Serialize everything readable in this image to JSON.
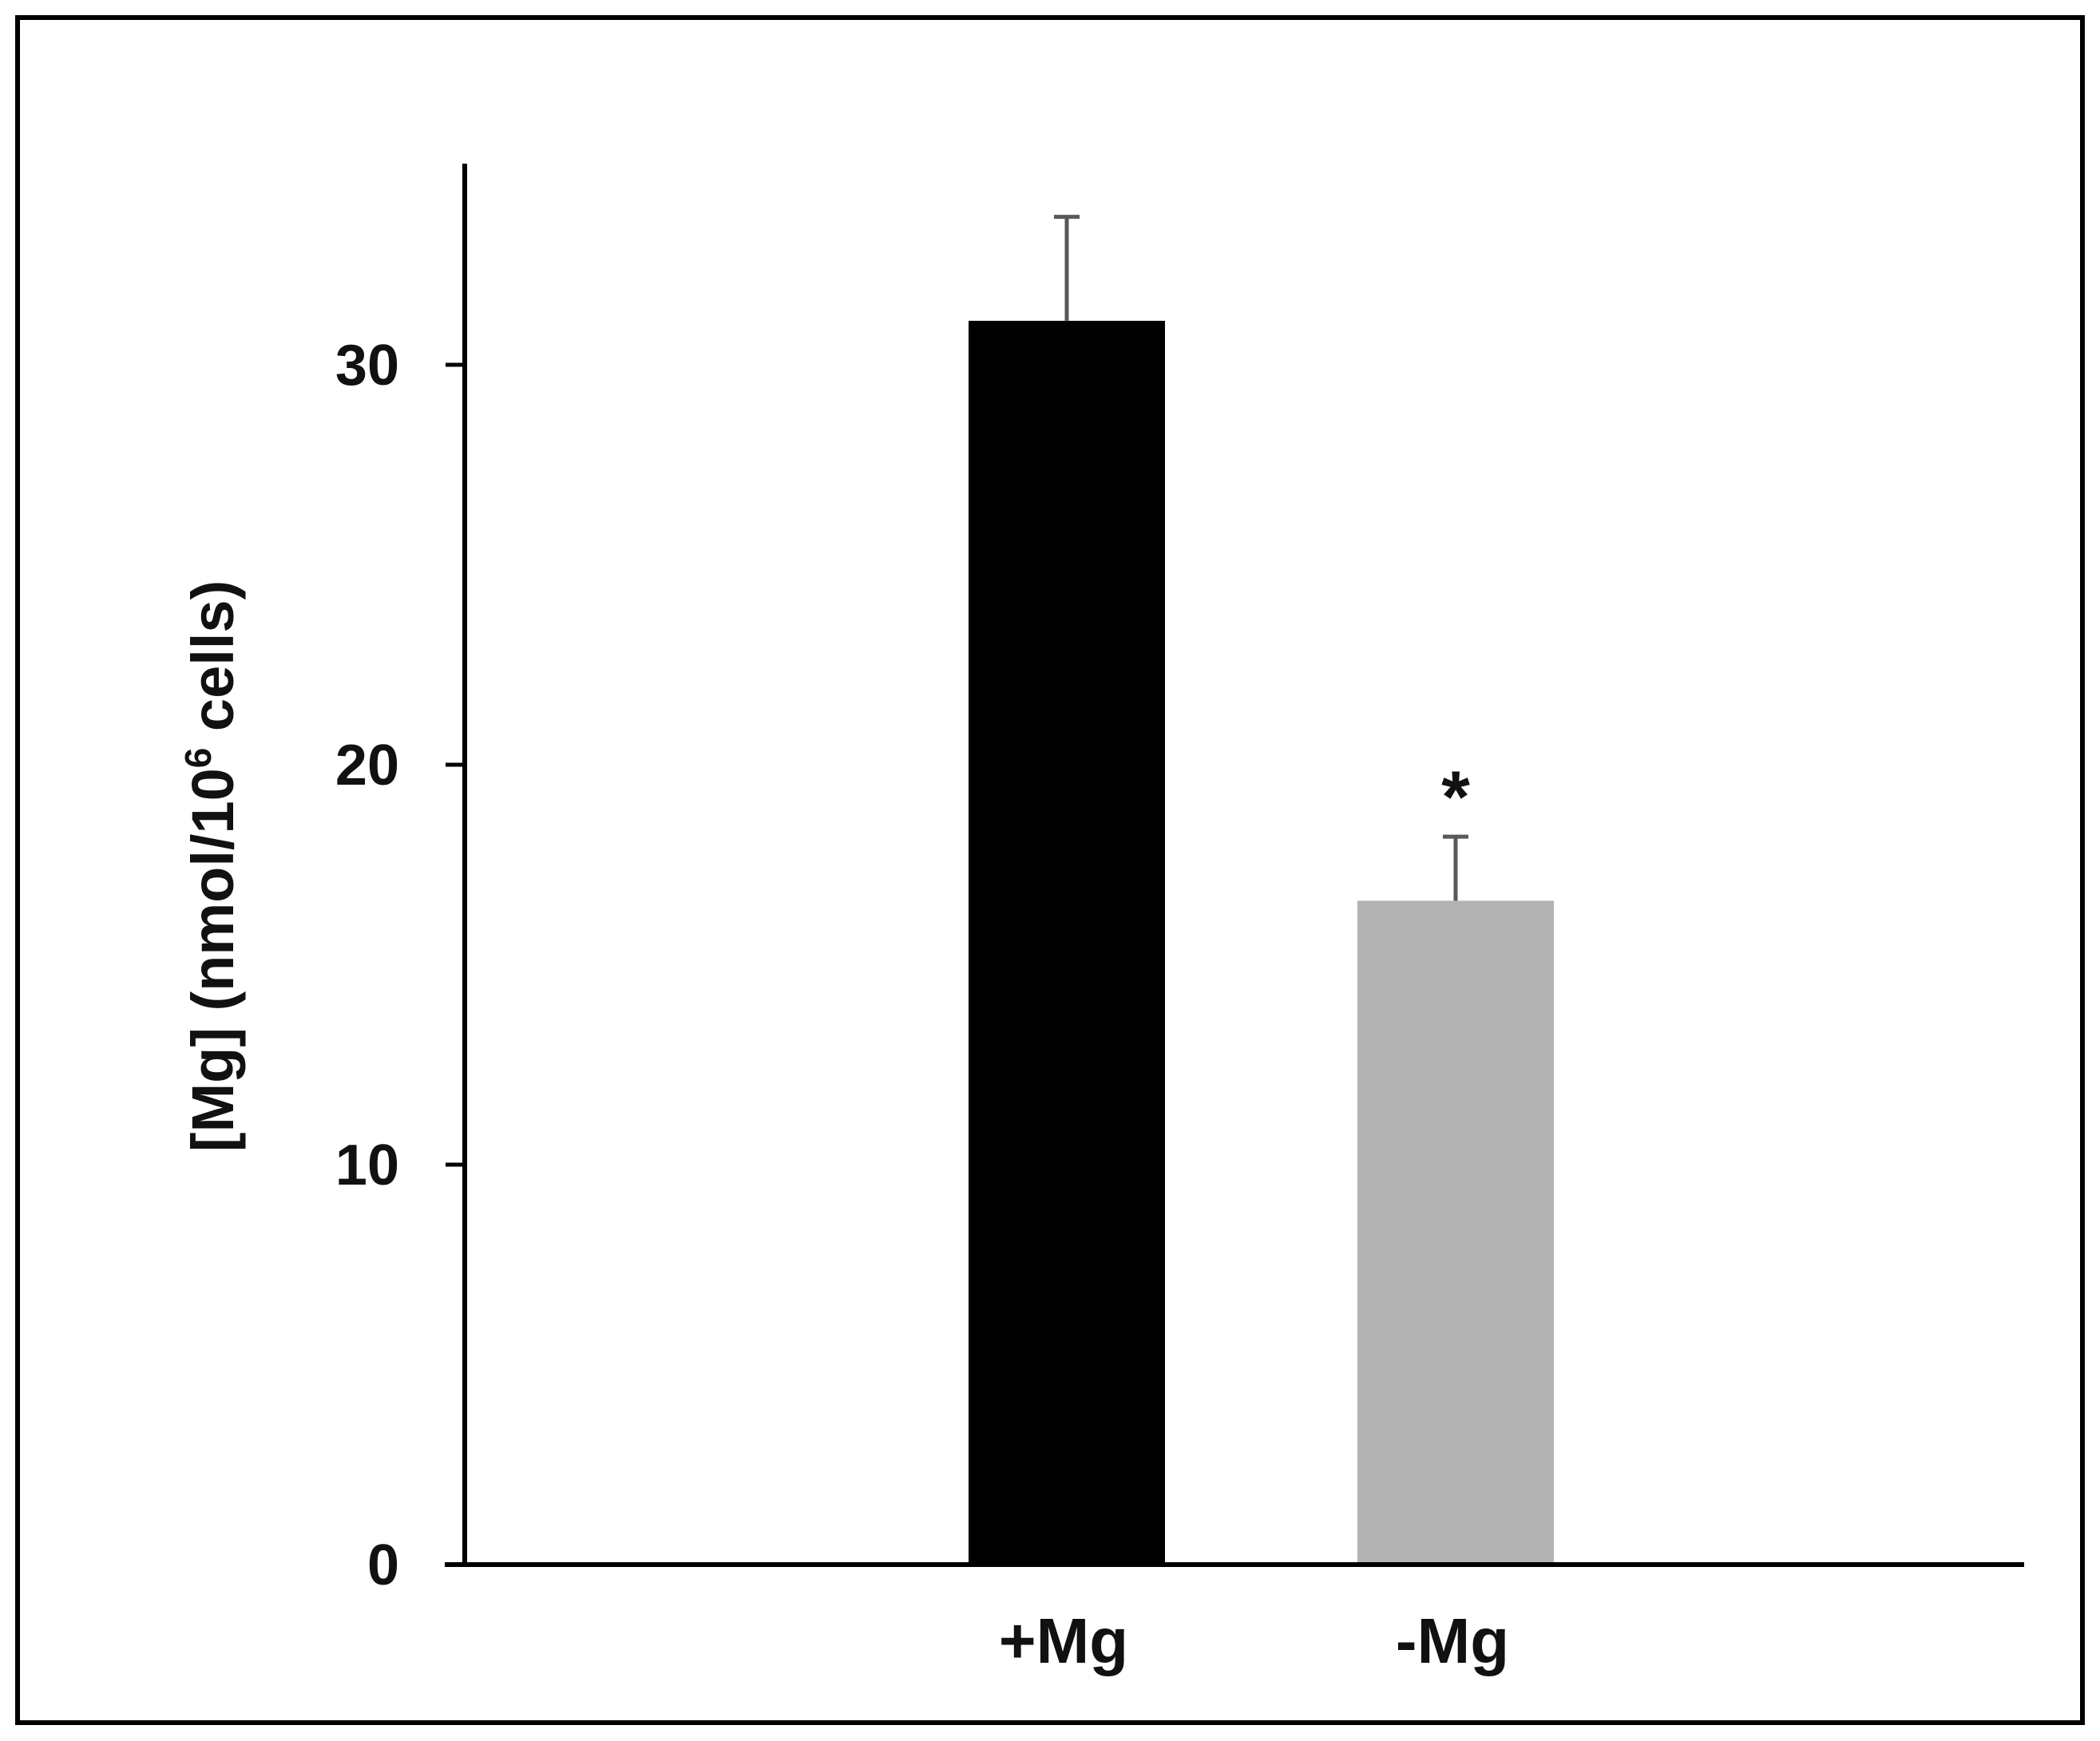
{
  "chart_data": {
    "type": "bar",
    "title": "",
    "xlabel": "",
    "ylabel": {
      "prefix": "[Mg] (nmol/10",
      "superscript": "6",
      "suffix": " cells)"
    },
    "categories": [
      "+Mg",
      "-Mg"
    ],
    "values": [
      31.1,
      16.6
    ],
    "errors": [
      2.6,
      1.6
    ],
    "colors": [
      "#000000",
      "#b3b3b3"
    ],
    "error_color": "#595959",
    "ylim": [
      0,
      35
    ],
    "yticks": [
      0,
      10,
      20,
      30
    ],
    "ytick_labels": [
      "0",
      "10",
      "20",
      "30"
    ],
    "grid": false,
    "annotations": [
      {
        "category": "-Mg",
        "text": "*"
      }
    ]
  }
}
